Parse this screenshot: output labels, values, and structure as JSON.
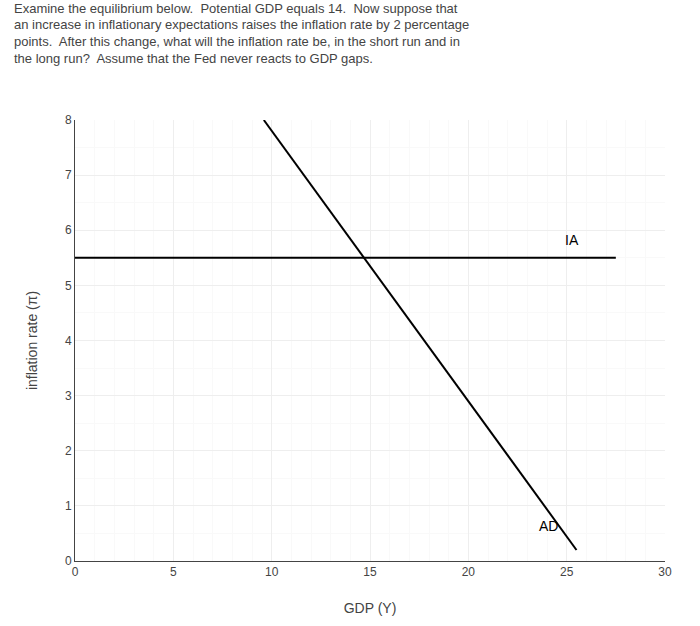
{
  "chart_data": {
    "type": "line",
    "title": "Examine the equilibrium below.  Potential GDP equals 14.  Now suppose that\nan increase in inflationary expectations raises the inflation rate by 2 percentage\npoints.  After this change, what will the inflation rate be, in the short run and in\nthe long run?  Assume that the Fed never reacts to GDP gaps.",
    "xlabel": "GDP (Y)",
    "ylabel": "inflation rate (π)",
    "xlim": [
      0,
      30
    ],
    "ylim": [
      0,
      8
    ],
    "xticks": [
      0,
      5,
      10,
      15,
      20,
      25,
      30
    ],
    "yticks": [
      0,
      1,
      2,
      3,
      4,
      5,
      6,
      7,
      8
    ],
    "grid": true,
    "series": [
      {
        "color": "#000000",
        "x": [
          0,
          27.5
        ],
        "values": [
          5.5,
          5.5
        ]
      },
      {
        "color": "#000000",
        "x": [
          9.6,
          25.5
        ],
        "values": [
          8.0,
          0.2
        ]
      }
    ],
    "annotations": [
      {
        "text": "IA",
        "x": 24.8,
        "y": 5.65
      },
      {
        "text": "AD",
        "x": 23.5,
        "y": 0.45
      }
    ]
  }
}
